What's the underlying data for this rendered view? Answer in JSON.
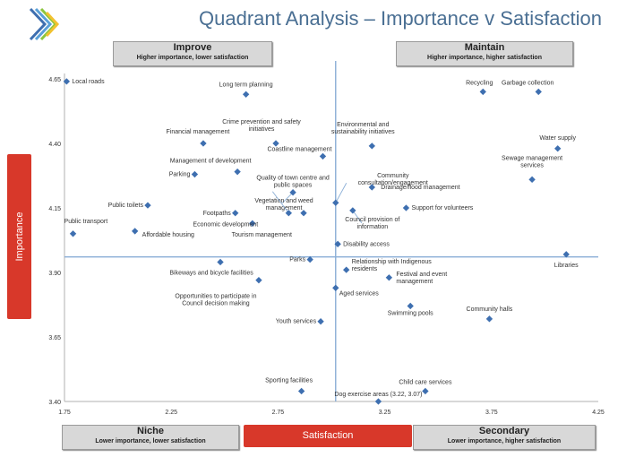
{
  "title": "Quadrant Analysis – Importance v Satisfaction",
  "quadrants": {
    "improve": {
      "label": "Improve",
      "sub": "Higher importance, lower satisfaction"
    },
    "maintain": {
      "label": "Maintain",
      "sub": "Higher importance, higher satisfaction"
    },
    "niche": {
      "label": "Niche",
      "sub": "Lower importance, lower satisfaction"
    },
    "secondary": {
      "label": "Secondary",
      "sub": "Lower importance, higher satisfaction"
    }
  },
  "colors": {
    "marker": "#3e6fb0",
    "accent": "#d8382a",
    "axis": "#8aaed6",
    "title": "#4a6f93"
  },
  "chart_data": {
    "type": "scatter",
    "xlabel": "Satisfaction",
    "ylabel": "Importance",
    "xlim": [
      1.75,
      4.25
    ],
    "ylim": [
      3.4,
      4.65
    ],
    "xticks": [
      "1.75",
      "2.25",
      "2.75",
      "3.25",
      "3.75",
      "4.25"
    ],
    "yticks": [
      "3.40",
      "3.65",
      "3.90",
      "4.15",
      "4.40",
      "4.65"
    ],
    "crosshair": {
      "x": 3.02,
      "y": 3.96
    },
    "grid": false,
    "points": [
      {
        "label": "Local roads",
        "x": 1.76,
        "y": 4.64
      },
      {
        "label": "Long term planning",
        "x": 2.6,
        "y": 4.59
      },
      {
        "label": "Recycling",
        "x": 3.71,
        "y": 4.6
      },
      {
        "label": "Garbage collection",
        "x": 3.97,
        "y": 4.6
      },
      {
        "label": "Crime prevention and safety initiatives",
        "x": 2.74,
        "y": 4.4
      },
      {
        "label": "Financial management",
        "x": 2.4,
        "y": 4.4
      },
      {
        "label": "Environmental and sustainability initiatives",
        "x": 3.19,
        "y": 4.39
      },
      {
        "label": "Water supply",
        "x": 4.06,
        "y": 4.38
      },
      {
        "label": "Coastline management",
        "x": 2.96,
        "y": 4.35
      },
      {
        "label": "Sewage management services",
        "x": 3.94,
        "y": 4.26
      },
      {
        "label": "Management of development",
        "x": 2.56,
        "y": 4.29
      },
      {
        "label": "Parking",
        "x": 2.36,
        "y": 4.28
      },
      {
        "label": "Community consultation/engagement",
        "x": 3.02,
        "y": 4.17
      },
      {
        "label": "Quality of town centre and public spaces",
        "x": 2.82,
        "y": 4.21
      },
      {
        "label": "Drainage/flood management",
        "x": 3.19,
        "y": 4.23
      },
      {
        "label": "Public toilets",
        "x": 2.14,
        "y": 4.16
      },
      {
        "label": "Support for volunteers",
        "x": 3.35,
        "y": 4.15
      },
      {
        "label": "Vegetation and weed management",
        "x": 2.87,
        "y": 4.13
      },
      {
        "label": "Footpaths",
        "x": 2.55,
        "y": 4.13
      },
      {
        "label": "Council provision of information",
        "x": 3.1,
        "y": 4.14
      },
      {
        "label": "Economic development",
        "x": 2.63,
        "y": 4.09
      },
      {
        "label": "Public transport",
        "x": 1.79,
        "y": 4.05
      },
      {
        "label": "Affordable housing",
        "x": 2.08,
        "y": 4.06
      },
      {
        "label": "Tourism management",
        "x": 2.8,
        "y": 4.13
      },
      {
        "label": "Disability access",
        "x": 3.03,
        "y": 4.01
      },
      {
        "label": "Libraries",
        "x": 4.1,
        "y": 3.97
      },
      {
        "label": "Parks",
        "x": 2.9,
        "y": 3.95
      },
      {
        "label": "Bikeways and bicycle facilities",
        "x": 2.48,
        "y": 3.94
      },
      {
        "label": "Relationship with Indigenous residents",
        "x": 3.07,
        "y": 3.91
      },
      {
        "label": "Festival and event management",
        "x": 3.27,
        "y": 3.88
      },
      {
        "label": "Opportunities to participate in Council decision making",
        "x": 2.66,
        "y": 3.87
      },
      {
        "label": "Aged services",
        "x": 3.02,
        "y": 3.84
      },
      {
        "label": "Swimming pools",
        "x": 3.37,
        "y": 3.77
      },
      {
        "label": "Community halls",
        "x": 3.74,
        "y": 3.72
      },
      {
        "label": "Youth services",
        "x": 2.95,
        "y": 3.71
      },
      {
        "label": "Sporting facilities",
        "x": 2.86,
        "y": 3.44
      },
      {
        "label": "Child care services",
        "x": 3.44,
        "y": 3.44
      },
      {
        "label": "Dog exercise areas (3.22, 3.07)",
        "x": 3.22,
        "y": 3.4
      }
    ]
  }
}
